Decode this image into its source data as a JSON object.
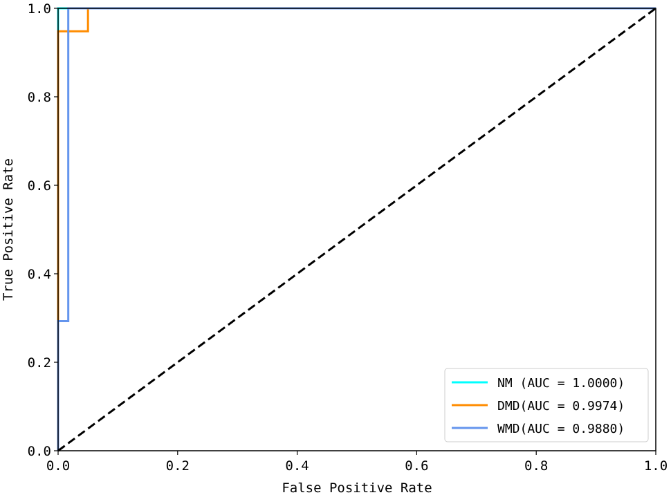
{
  "chart_data": {
    "type": "line",
    "title": "",
    "xlabel": "False Positive Rate",
    "ylabel": "True Positive Rate",
    "xlim": [
      0.0,
      1.0
    ],
    "ylim": [
      0.0,
      1.0
    ],
    "xticks": [
      "0.0",
      "0.2",
      "0.4",
      "0.6",
      "0.8",
      "1.0"
    ],
    "yticks": [
      "0.0",
      "0.2",
      "0.4",
      "0.6",
      "0.8",
      "1.0"
    ],
    "grid": false,
    "legend_position": "lower-right",
    "series": [
      {
        "name": "NM (AUC = 1.0000)",
        "color": "#00ffff",
        "style": "solid",
        "x": [
          0.0,
          0.0,
          1.0
        ],
        "y": [
          0.0,
          1.0,
          1.0
        ]
      },
      {
        "name": "DMD(AUC = 0.9974)",
        "color": "#ff8c00",
        "style": "solid",
        "x": [
          0.0,
          0.0,
          0.05,
          0.05,
          1.0
        ],
        "y": [
          0.0,
          0.948,
          0.948,
          1.0,
          1.0
        ]
      },
      {
        "name": "WMD(AUC = 0.9880)",
        "color": "#6495ed",
        "style": "solid",
        "x": [
          0.0,
          0.0,
          0.017,
          0.017,
          1.0
        ],
        "y": [
          0.0,
          0.293,
          0.293,
          1.0,
          1.0
        ]
      },
      {
        "name": "",
        "color": "#000000",
        "style": "dashed",
        "x": [
          0.0,
          1.0
        ],
        "y": [
          0.0,
          1.0
        ]
      }
    ]
  }
}
